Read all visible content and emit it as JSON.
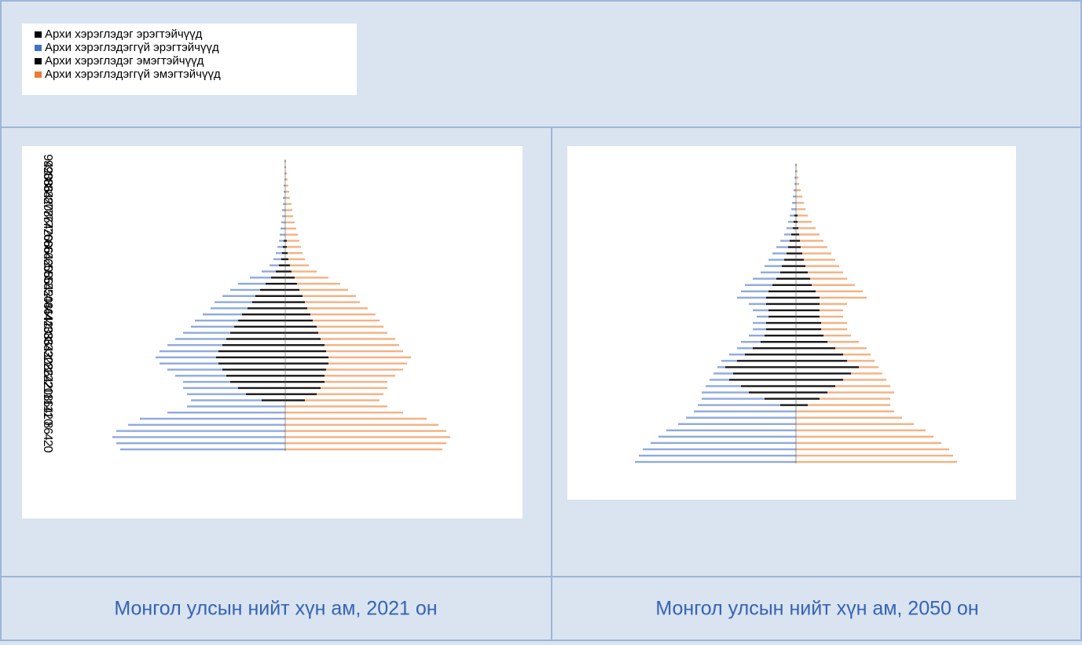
{
  "chart_data": [
    {
      "type": "pyramid",
      "categories": [
        "0",
        "2",
        "4",
        "6",
        "8",
        "10",
        "12",
        "14",
        "16",
        "18",
        "20",
        "22",
        "24",
        "26",
        "28",
        "30",
        "32",
        "34",
        "36",
        "38",
        "40",
        "42",
        "44",
        "46",
        "48",
        "50",
        "52",
        "54",
        "56",
        "58",
        "60",
        "62",
        "64",
        "66",
        "68",
        "70",
        "72",
        "74",
        "76",
        "78",
        "80",
        "82",
        "84",
        "86",
        "88",
        "90",
        "92",
        "94"
      ],
      "xlim": [
        0,
        220
      ],
      "series": [
        {
          "name": "Архи хэрэглэдэг эрэгтэйчүүд",
          "color": "#000000",
          "side": "left",
          "values": [
            0,
            0,
            0,
            0,
            0,
            0,
            0,
            0,
            30,
            50,
            60,
            70,
            75,
            80,
            85,
            88,
            85,
            80,
            75,
            70,
            65,
            60,
            55,
            48,
            42,
            38,
            32,
            25,
            18,
            12,
            8,
            5,
            4,
            3,
            2,
            0,
            0,
            0,
            0,
            0,
            0,
            0,
            0,
            0,
            0,
            0,
            0,
            0
          ]
        },
        {
          "name": "Архи хэрэглэдэггүй эрэгтэйчүүд",
          "color": "#4472c4",
          "side": "left",
          "values": [
            210,
            215,
            220,
            215,
            200,
            185,
            150,
            125,
            90,
            75,
            70,
            60,
            65,
            70,
            75,
            77,
            75,
            70,
            65,
            60,
            55,
            55,
            50,
            47,
            48,
            42,
            38,
            35,
            27,
            18,
            12,
            10,
            8,
            7,
            6,
            7,
            6,
            5,
            4,
            4,
            3,
            3,
            2,
            2,
            1,
            1,
            1,
            1
          ]
        },
        {
          "name": "Архи хэрэглэдэг эмэгтэйчүүд",
          "color": "#000000",
          "side": "right",
          "values": [
            0,
            0,
            0,
            0,
            0,
            0,
            0,
            0,
            25,
            40,
            45,
            50,
            50,
            52,
            55,
            55,
            52,
            50,
            45,
            42,
            40,
            35,
            32,
            28,
            25,
            22,
            18,
            15,
            12,
            8,
            6,
            4,
            3,
            2,
            2,
            0,
            0,
            0,
            0,
            0,
            0,
            0,
            0,
            0,
            0,
            0,
            0,
            0
          ]
        },
        {
          "name": "Архи хэрэглэдэггүй эмэгтэйчүүд",
          "color": "#ed7d31",
          "side": "right",
          "values": [
            200,
            205,
            210,
            205,
            195,
            180,
            150,
            130,
            95,
            85,
            85,
            80,
            90,
            98,
            100,
            105,
            98,
            95,
            95,
            88,
            85,
            85,
            83,
            77,
            70,
            68,
            62,
            55,
            43,
            32,
            24,
            21,
            19,
            18,
            16,
            16,
            14,
            12,
            10,
            9,
            8,
            6,
            5,
            4,
            3,
            2,
            1,
            1
          ]
        }
      ]
    },
    {
      "type": "pyramid",
      "xlim": [
        0,
        205
      ],
      "series": [
        {
          "color": "#000000",
          "side": "left",
          "values": [
            0,
            0,
            0,
            0,
            0,
            0,
            0,
            0,
            0,
            20,
            40,
            60,
            70,
            85,
            80,
            90,
            75,
            65,
            55,
            45,
            40,
            38,
            38,
            35,
            35,
            38,
            38,
            35,
            30,
            25,
            20,
            18,
            15,
            12,
            10,
            8,
            6,
            4,
            3,
            2,
            0,
            0,
            0,
            0,
            0,
            0,
            0,
            0
          ]
        },
        {
          "color": "#4472c4",
          "side": "left",
          "values": [
            205,
            200,
            195,
            185,
            175,
            165,
            150,
            140,
            130,
            105,
            80,
            60,
            45,
            25,
            25,
            10,
            20,
            20,
            20,
            25,
            20,
            17,
            17,
            15,
            20,
            22,
            37,
            35,
            35,
            30,
            25,
            22,
            20,
            18,
            15,
            12,
            9,
            8,
            7,
            6,
            6,
            5,
            4,
            3,
            2,
            2,
            1,
            1
          ]
        },
        {
          "color": "#000000",
          "side": "right",
          "values": [
            0,
            0,
            0,
            0,
            0,
            0,
            0,
            0,
            0,
            15,
            30,
            40,
            50,
            60,
            70,
            80,
            65,
            60,
            50,
            40,
            35,
            32,
            32,
            30,
            30,
            30,
            30,
            25,
            20,
            18,
            15,
            12,
            10,
            8,
            6,
            5,
            4,
            3,
            2,
            2,
            0,
            0,
            0,
            0,
            0,
            0,
            0,
            0
          ]
        },
        {
          "color": "#ed7d31",
          "side": "right",
          "values": [
            205,
            200,
            195,
            185,
            175,
            165,
            150,
            135,
            125,
            105,
            90,
            85,
            70,
            55,
            40,
            25,
            35,
            35,
            40,
            40,
            35,
            33,
            33,
            30,
            30,
            35,
            60,
            60,
            55,
            47,
            45,
            43,
            40,
            37,
            34,
            30,
            26,
            22,
            18,
            13,
            12,
            10,
            8,
            6,
            4,
            3,
            2,
            1
          ]
        }
      ]
    }
  ],
  "captions": [
    "Монгол улсын нийт хүн ам, 2021 он",
    "Монгол улсын нийт хүн ам, 2050 он"
  ]
}
